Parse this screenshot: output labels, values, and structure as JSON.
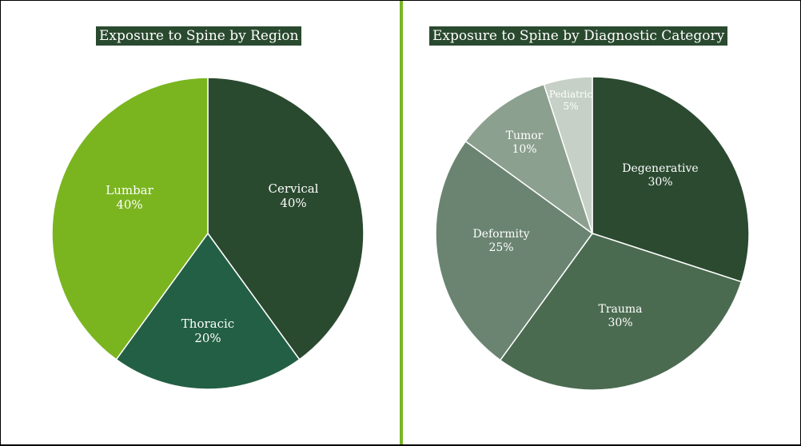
{
  "chart_data": [
    {
      "type": "pie",
      "title": "Exposure to Spine by Region",
      "slices": [
        {
          "label": "Cervical",
          "value": 40,
          "value_label": "40%",
          "color": "#2a4a2f"
        },
        {
          "label": "Thoracic",
          "value": 20,
          "value_label": "20%",
          "color": "#235f44"
        },
        {
          "label": "Lumbar",
          "value": 40,
          "value_label": "40%",
          "color": "#7ab520"
        }
      ],
      "start": "12 o'clock",
      "direction": "clockwise",
      "legend": "none"
    },
    {
      "type": "pie",
      "title": "Exposure to Spine by Diagnostic Category",
      "slices": [
        {
          "label": "Degenerative",
          "value": 30,
          "value_label": "30%",
          "color": "#2b4a30"
        },
        {
          "label": "Trauma",
          "value": 30,
          "value_label": "30%",
          "color": "#4b6b51"
        },
        {
          "label": "Deformity",
          "value": 25,
          "value_label": "25%",
          "color": "#6a8471"
        },
        {
          "label": "Tumor",
          "value": 10,
          "value_label": "10%",
          "color": "#8ba08e"
        },
        {
          "label": "Pediatric",
          "value": 5,
          "value_label": "5%",
          "color": "#c6d0c6"
        }
      ],
      "start": "12 o'clock",
      "direction": "clockwise",
      "legend": "none"
    }
  ]
}
